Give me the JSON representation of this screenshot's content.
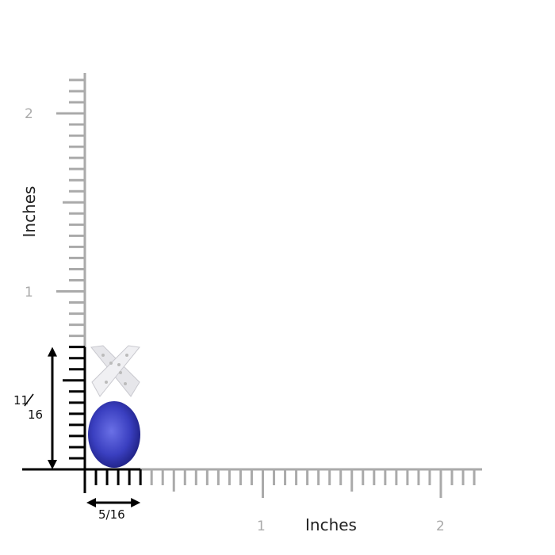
{
  "ruler": {
    "unit_label_x": "Inches",
    "unit_label_y": "Inches",
    "x_ticks": [
      "1",
      "2"
    ],
    "y_ticks": [
      "1",
      "2"
    ],
    "ruler_color": "#aaaaaa",
    "measure_color": "#000000"
  },
  "product": {
    "height": {
      "num": "11",
      "den": "16",
      "value_in": 0.6875
    },
    "width": {
      "label": "5/16",
      "value_in": 0.3125
    },
    "gem_color": "#3a3fc0",
    "metal_color": "#e8e8ec"
  }
}
